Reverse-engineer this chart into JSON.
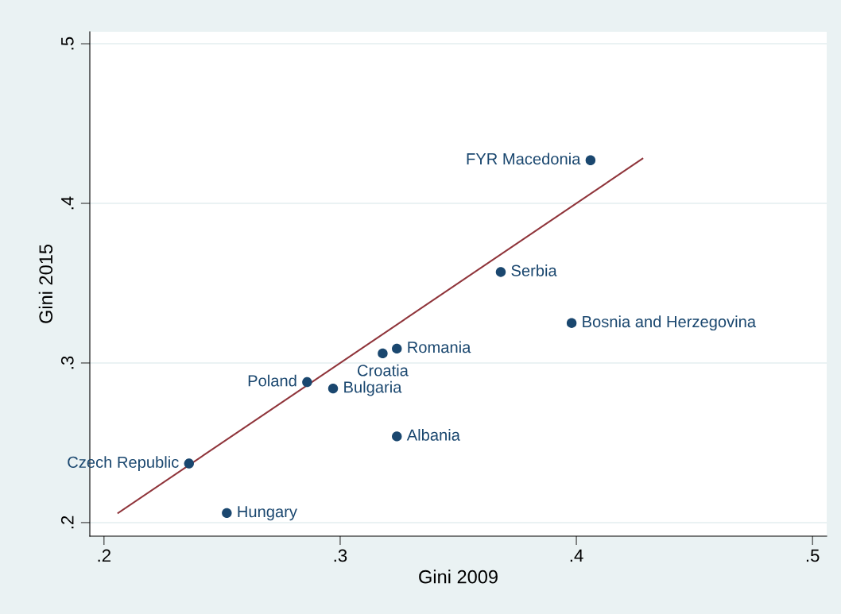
{
  "chart_data": {
    "type": "scatter",
    "xlabel": "Gini 2009",
    "ylabel": "Gini 2015",
    "xlim": [
      0.194,
      0.506
    ],
    "ylim": [
      0.1915,
      0.5075
    ],
    "xticks": [
      {
        "value": 0.2,
        "label": ".2"
      },
      {
        "value": 0.3,
        "label": ".3"
      },
      {
        "value": 0.4,
        "label": ".4"
      },
      {
        "value": 0.5,
        "label": ".5"
      }
    ],
    "yticks": [
      {
        "value": 0.2,
        "label": ".2"
      },
      {
        "value": 0.3,
        "label": ".3"
      },
      {
        "value": 0.4,
        "label": ".4"
      },
      {
        "value": 0.5,
        "label": ".5"
      }
    ],
    "grid": "y",
    "series": [
      {
        "marker": "circle",
        "color": "#1a476f",
        "x": [
          0.406,
          0.368,
          0.398,
          0.324,
          0.318,
          0.286,
          0.297,
          0.324,
          0.236,
          0.252
        ],
        "values": [
          0.427,
          0.357,
          0.325,
          0.309,
          0.306,
          0.288,
          0.284,
          0.254,
          0.237,
          0.206
        ]
      },
      {
        "type": "line",
        "color": "#90353b",
        "line_style": "solid",
        "x": [
          0.206,
          0.428
        ],
        "values": [
          0.206,
          0.428
        ]
      }
    ],
    "annotations": [
      {
        "text": "FYR Macedonia",
        "x": 0.406,
        "y": 0.427
      },
      {
        "text": "Serbia",
        "x": 0.368,
        "y": 0.357
      },
      {
        "text": "Bosnia and Herzegovina",
        "x": 0.398,
        "y": 0.325
      },
      {
        "text": "Romania",
        "x": 0.324,
        "y": 0.309
      },
      {
        "text": "Croatia",
        "x": 0.318,
        "y": 0.306
      },
      {
        "text": "Poland",
        "x": 0.286,
        "y": 0.288
      },
      {
        "text": "Bulgaria",
        "x": 0.297,
        "y": 0.284
      },
      {
        "text": "Albania",
        "x": 0.324,
        "y": 0.254
      },
      {
        "text": "Czech Republic",
        "x": 0.236,
        "y": 0.237
      },
      {
        "text": "Hungary",
        "x": 0.252,
        "y": 0.206
      }
    ]
  }
}
